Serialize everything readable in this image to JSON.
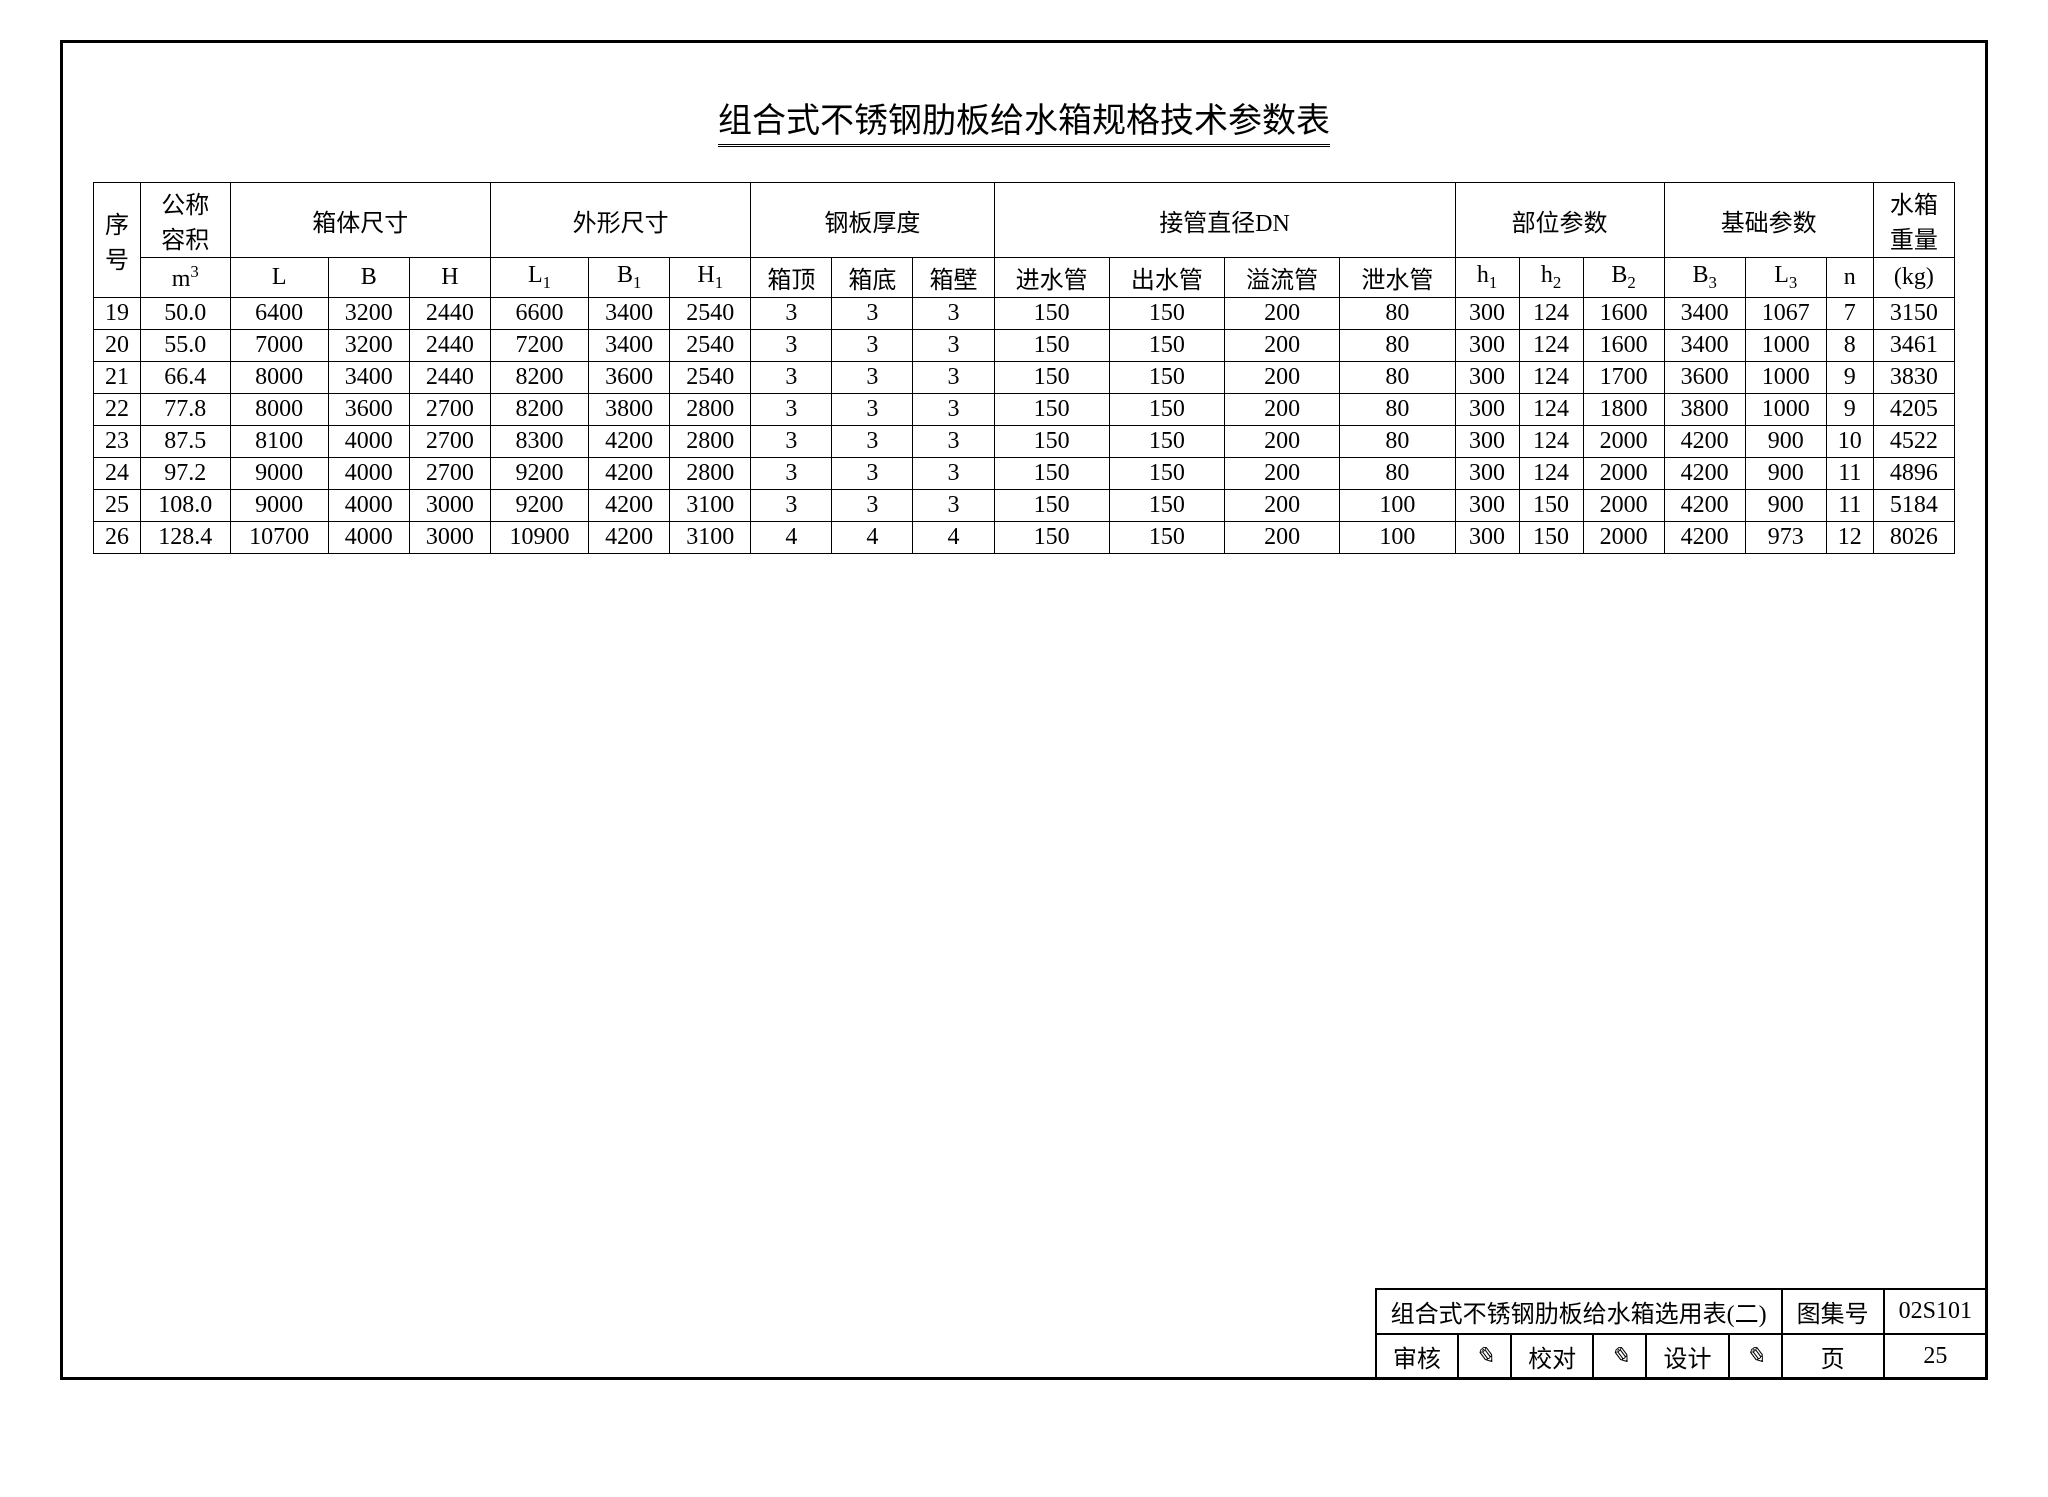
{
  "title": "组合式不锈钢肋板给水箱规格技术参数表",
  "header": {
    "groups": [
      {
        "label": "序号",
        "span": 1
      },
      {
        "label": "公称容积",
        "unit": "m³",
        "span": 1
      },
      {
        "label": "箱体尺寸",
        "span": 3,
        "subs": [
          "L",
          "B",
          "H"
        ]
      },
      {
        "label": "外形尺寸",
        "span": 3,
        "subs": [
          "L₁",
          "B₁",
          "H₁"
        ]
      },
      {
        "label": "钢板厚度",
        "span": 3,
        "subs": [
          "箱顶",
          "箱底",
          "箱壁"
        ]
      },
      {
        "label": "接管直径DN",
        "span": 4,
        "subs": [
          "进水管",
          "出水管",
          "溢流管",
          "泄水管"
        ]
      },
      {
        "label": "部位参数",
        "span": 3,
        "subs": [
          "h₁",
          "h₂",
          "B₂"
        ]
      },
      {
        "label": "基础参数",
        "span": 3,
        "subs": [
          "B₃",
          "L₃",
          "n"
        ]
      },
      {
        "label": "水箱重量",
        "unit": "(kg)",
        "span": 1
      }
    ]
  },
  "rows": [
    [
      "19",
      "50.0",
      "6400",
      "3200",
      "2440",
      "6600",
      "3400",
      "2540",
      "3",
      "3",
      "3",
      "150",
      "150",
      "200",
      "80",
      "300",
      "124",
      "1600",
      "3400",
      "1067",
      "7",
      "3150"
    ],
    [
      "20",
      "55.0",
      "7000",
      "3200",
      "2440",
      "7200",
      "3400",
      "2540",
      "3",
      "3",
      "3",
      "150",
      "150",
      "200",
      "80",
      "300",
      "124",
      "1600",
      "3400",
      "1000",
      "8",
      "3461"
    ],
    [
      "21",
      "66.4",
      "8000",
      "3400",
      "2440",
      "8200",
      "3600",
      "2540",
      "3",
      "3",
      "3",
      "150",
      "150",
      "200",
      "80",
      "300",
      "124",
      "1700",
      "3600",
      "1000",
      "9",
      "3830"
    ],
    [
      "22",
      "77.8",
      "8000",
      "3600",
      "2700",
      "8200",
      "3800",
      "2800",
      "3",
      "3",
      "3",
      "150",
      "150",
      "200",
      "80",
      "300",
      "124",
      "1800",
      "3800",
      "1000",
      "9",
      "4205"
    ],
    [
      "23",
      "87.5",
      "8100",
      "4000",
      "2700",
      "8300",
      "4200",
      "2800",
      "3",
      "3",
      "3",
      "150",
      "150",
      "200",
      "80",
      "300",
      "124",
      "2000",
      "4200",
      "900",
      "10",
      "4522"
    ],
    [
      "24",
      "97.2",
      "9000",
      "4000",
      "2700",
      "9200",
      "4200",
      "2800",
      "3",
      "3",
      "3",
      "150",
      "150",
      "200",
      "80",
      "300",
      "124",
      "2000",
      "4200",
      "900",
      "11",
      "4896"
    ],
    [
      "25",
      "108.0",
      "9000",
      "4000",
      "3000",
      "9200",
      "4200",
      "3100",
      "3",
      "3",
      "3",
      "150",
      "150",
      "200",
      "100",
      "300",
      "150",
      "2000",
      "4200",
      "900",
      "11",
      "5184"
    ],
    [
      "26",
      "128.4",
      "10700",
      "4000",
      "3000",
      "10900",
      "4200",
      "3100",
      "4",
      "4",
      "4",
      "150",
      "150",
      "200",
      "100",
      "300",
      "150",
      "2000",
      "4200",
      "973",
      "12",
      "8026"
    ]
  ],
  "footer": {
    "drawing_title": "组合式不锈钢肋板给水箱选用表(二)",
    "tuji_label": "图集号",
    "tuji_value": "02S101",
    "shenhe_label": "审核",
    "shenhe_value": "",
    "jiaodui_label": "校对",
    "jiaodui_value": "",
    "sheji_label": "设计",
    "sheji_value": "",
    "page_label": "页",
    "page_value": "25"
  },
  "style": {
    "background": "#ffffff",
    "border_color": "#000000",
    "title_fontsize": 34,
    "table_fontsize": 24
  }
}
